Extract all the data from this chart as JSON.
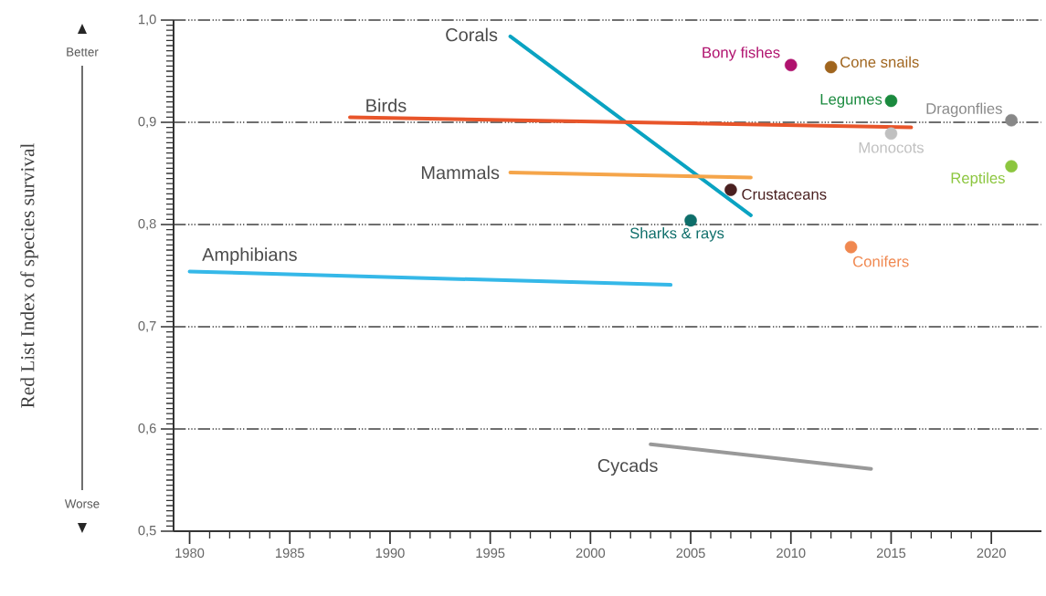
{
  "chart_data": {
    "type": "line",
    "annotations": [
      "Red List Index of species survival",
      "Better",
      "Worse"
    ],
    "xlim": [
      1979.2,
      2022.5
    ],
    "ylim": [
      0.5,
      1.0
    ],
    "xticks": [
      1980,
      1985,
      1990,
      1995,
      2000,
      2005,
      2010,
      2015,
      2020
    ],
    "yticks": [
      {
        "value": 0.5,
        "label": "0,5"
      },
      {
        "value": 0.6,
        "label": "0,6"
      },
      {
        "value": 0.7,
        "label": "0,7"
      },
      {
        "value": 0.8,
        "label": "0,8"
      },
      {
        "value": 0.9,
        "label": "0,9"
      },
      {
        "value": 1.0,
        "label": "1,0"
      }
    ],
    "grid": "y",
    "series": [
      {
        "name": "Corals",
        "color": "#0aa3c2",
        "x": [
          1996,
          2008
        ],
        "values": [
          0.984,
          0.809
        ]
      },
      {
        "name": "Birds",
        "color": "#e8552a",
        "x": [
          1988,
          2016
        ],
        "values": [
          0.905,
          0.895
        ]
      },
      {
        "name": "Mammals",
        "color": "#f5a54a",
        "x": [
          1996,
          2008
        ],
        "values": [
          0.851,
          0.846
        ]
      },
      {
        "name": "Amphibians",
        "color": "#35b8e8",
        "x": [
          1980,
          2004
        ],
        "values": [
          0.754,
          0.741
        ]
      },
      {
        "name": "Cycads",
        "color": "#999999",
        "x": [
          2003,
          2014
        ],
        "values": [
          0.585,
          0.561
        ]
      },
      {
        "name": "Bony fishes",
        "type": "scatter",
        "color": "#b0126e",
        "x": [
          2010
        ],
        "values": [
          0.956
        ]
      },
      {
        "name": "Cone snails",
        "type": "scatter",
        "color": "#a0651e",
        "x": [
          2012
        ],
        "values": [
          0.954
        ]
      },
      {
        "name": "Legumes",
        "type": "scatter",
        "color": "#1a8a3e",
        "x": [
          2015
        ],
        "values": [
          0.921
        ]
      },
      {
        "name": "Monocots",
        "type": "scatter",
        "color": "#c0c0c0",
        "x": [
          2015
        ],
        "values": [
          0.889
        ]
      },
      {
        "name": "Crustaceans",
        "type": "scatter",
        "color": "#4a2020",
        "x": [
          2007
        ],
        "values": [
          0.834
        ]
      },
      {
        "name": "Sharks & rays",
        "type": "scatter",
        "color": "#0e6e6a",
        "x": [
          2005
        ],
        "values": [
          0.804
        ]
      },
      {
        "name": "Conifers",
        "type": "scatter",
        "color": "#f08850",
        "x": [
          2013
        ],
        "values": [
          0.778
        ]
      },
      {
        "name": "Dragonflies",
        "type": "scatter",
        "color": "#888888",
        "x": [
          2021
        ],
        "values": [
          0.902
        ]
      },
      {
        "name": "Reptiles",
        "type": "scatter",
        "color": "#8cc63f",
        "x": [
          2021
        ],
        "values": [
          0.857
        ]
      }
    ]
  }
}
